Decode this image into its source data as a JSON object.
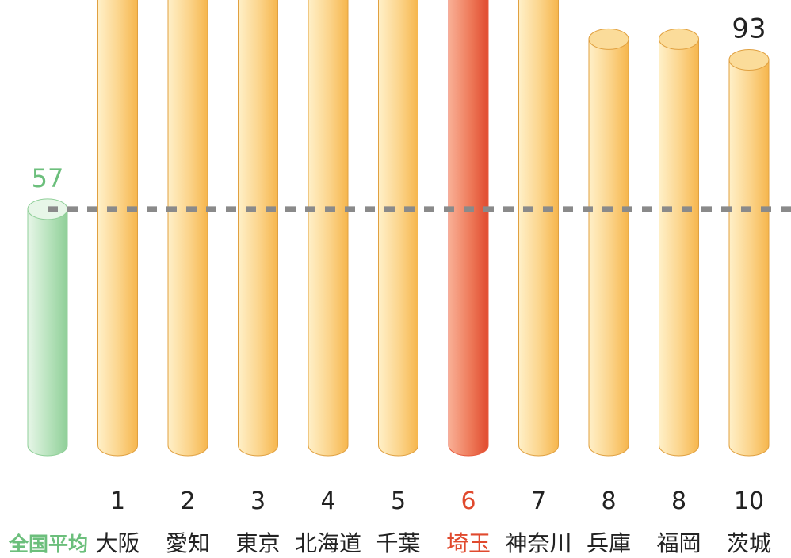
{
  "colors": {
    "bar": "#f6b64d",
    "bar_light": "#fff0c8",
    "highlight": "#e85a3c",
    "highlight_light": "#f9b096",
    "average": "#8fcf98",
    "average_light": "#e7f6e8",
    "average_text": "#6cbf7c",
    "highlight_text": "#e04a2e",
    "text": "#222222",
    "dashed_line": "#8a8a8a"
  },
  "chart_data": {
    "type": "bar",
    "categories": [
      "全国平均",
      "大阪",
      "愛知",
      "東京",
      "北海道",
      "千葉",
      "埼玉",
      "神奈川",
      "兵庫",
      "福岡",
      "茨城"
    ],
    "ranks": [
      "",
      "1",
      "2",
      "3",
      "4",
      "5",
      "6",
      "7",
      "8",
      "8",
      "10"
    ],
    "values": [
      57,
      null,
      null,
      null,
      null,
      null,
      null,
      null,
      98,
      98,
      93
    ],
    "value_labels": [
      "57",
      "",
      "",
      "",
      "",
      "",
      "",
      "",
      "",
      "",
      "93"
    ],
    "highlight": "埼玉",
    "reference_line": {
      "value": 57,
      "style": "dashed"
    },
    "ylim": [
      0,
      104
    ]
  }
}
